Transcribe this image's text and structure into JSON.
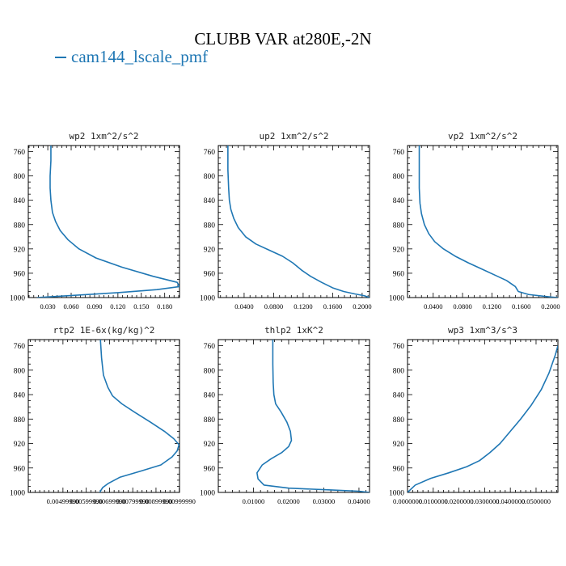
{
  "title": "CLUBB VAR at280E,-2N",
  "legend": {
    "label": "cam144_lscale_pmf",
    "color": "#1f77b4"
  },
  "chart_data": [
    {
      "type": "line",
      "title": "wp2  1xm^2/s^2",
      "ylim": [
        1000,
        750
      ],
      "yticks": [
        760,
        800,
        840,
        880,
        920,
        960,
        1000
      ],
      "xlim": [
        0.005,
        0.199
      ],
      "xticks": [
        0.03,
        0.06,
        0.09,
        0.12,
        0.15,
        0.18
      ],
      "xticklabels": [
        "0.030",
        "0.060",
        "0.090",
        "0.120",
        "0.150",
        "0.180"
      ],
      "series": [
        {
          "color": "#1f77b4",
          "x": [
            0.034,
            0.034,
            0.033,
            0.033,
            0.034,
            0.036,
            0.04,
            0.046,
            0.056,
            0.07,
            0.092,
            0.125,
            0.165,
            0.196,
            0.199,
            0.17,
            0.12,
            0.016
          ],
          "y": [
            750,
            775,
            800,
            820,
            840,
            860,
            875,
            890,
            905,
            920,
            935,
            950,
            965,
            975,
            982,
            987,
            992,
            1000
          ]
        }
      ]
    },
    {
      "type": "line",
      "title": "up2  1xm^2/s^2",
      "ylim": [
        1000,
        750
      ],
      "yticks": [
        760,
        800,
        840,
        880,
        920,
        960,
        1000
      ],
      "xlim": [
        0.005,
        0.21
      ],
      "xticks": [
        0.04,
        0.08,
        0.12,
        0.16,
        0.2
      ],
      "xticklabels": [
        "0.0400",
        "0.0800",
        "0.1200",
        "0.1600",
        "0.2000"
      ],
      "series": [
        {
          "color": "#1f77b4",
          "x": [
            0.018,
            0.018,
            0.019,
            0.02,
            0.022,
            0.026,
            0.032,
            0.042,
            0.056,
            0.074,
            0.092,
            0.106,
            0.118,
            0.13,
            0.145,
            0.16,
            0.175,
            0.19,
            0.203,
            0.21
          ],
          "y": [
            750,
            790,
            820,
            840,
            855,
            870,
            885,
            900,
            912,
            922,
            932,
            943,
            955,
            965,
            975,
            984,
            990,
            994,
            997,
            1000
          ]
        }
      ]
    },
    {
      "type": "line",
      "title": "vp2  1xm^2/s^2",
      "ylim": [
        1000,
        750
      ],
      "yticks": [
        760,
        800,
        840,
        880,
        920,
        960,
        1000
      ],
      "xlim": [
        0.005,
        0.21
      ],
      "xticks": [
        0.04,
        0.08,
        0.12,
        0.16,
        0.2
      ],
      "xticklabels": [
        "0.0400",
        "0.0800",
        "0.1200",
        "0.1600",
        "0.2000"
      ],
      "series": [
        {
          "color": "#1f77b4",
          "x": [
            0.021,
            0.021,
            0.021,
            0.022,
            0.024,
            0.028,
            0.034,
            0.042,
            0.054,
            0.07,
            0.088,
            0.106,
            0.124,
            0.14,
            0.152,
            0.156,
            0.17,
            0.2,
            0.21
          ],
          "y": [
            750,
            790,
            820,
            845,
            862,
            880,
            895,
            908,
            920,
            932,
            943,
            953,
            963,
            972,
            982,
            990,
            995,
            999,
            1000
          ]
        }
      ]
    },
    {
      "type": "line",
      "title": "rtp2  1E-6x(kg/kg)^2",
      "ylim": [
        1000,
        750
      ],
      "yticks": [
        760,
        800,
        840,
        880,
        920,
        960,
        1000
      ],
      "xlim": [
        0.0035,
        0.01
      ],
      "xticks": [
        0.00499,
        0.00599,
        0.00699,
        0.00799,
        0.00899,
        0.00999
      ],
      "xticklabels": [
        "0.00499990",
        "0.00599990",
        "0.00699990",
        "0.00799990",
        "0.00899990",
        "0.00999990"
      ],
      "series": [
        {
          "color": "#1f77b4",
          "x": [
            0.0066,
            0.00665,
            0.00673,
            0.00692,
            0.00712,
            0.00752,
            0.00812,
            0.00875,
            0.00935,
            0.00975,
            0.00998,
            0.0099,
            0.00968,
            0.0092,
            0.00835,
            0.00745,
            0.00695,
            0.0067,
            0.0066,
            0.00658
          ],
          "y": [
            750,
            780,
            808,
            828,
            842,
            855,
            870,
            885,
            900,
            912,
            922,
            932,
            942,
            955,
            965,
            975,
            985,
            992,
            998,
            1000
          ]
        }
      ]
    },
    {
      "type": "line",
      "title": "thlp2  1xK^2",
      "ylim": [
        1000,
        750
      ],
      "yticks": [
        760,
        800,
        840,
        880,
        920,
        960,
        1000
      ],
      "xlim": [
        0.0,
        0.043
      ],
      "xticks": [
        0.01,
        0.02,
        0.03,
        0.04
      ],
      "xticklabels": [
        "0.01000",
        "0.02000",
        "0.03000",
        "0.04000"
      ],
      "series": [
        {
          "color": "#1f77b4",
          "x": [
            0.0155,
            0.0155,
            0.0156,
            0.0158,
            0.0163,
            0.0178,
            0.0195,
            0.0205,
            0.0208,
            0.02,
            0.018,
            0.015,
            0.0125,
            0.011,
            0.0113,
            0.013,
            0.02,
            0.032,
            0.04,
            0.043
          ],
          "y": [
            750,
            790,
            820,
            840,
            855,
            868,
            885,
            900,
            915,
            925,
            935,
            945,
            955,
            968,
            978,
            988,
            993,
            996,
            998,
            1000
          ]
        }
      ]
    },
    {
      "type": "line",
      "title": "wp3  1xm^3/s^3",
      "ylim": [
        1000,
        750
      ],
      "yticks": [
        760,
        800,
        840,
        880,
        920,
        960,
        1000
      ],
      "xlim": [
        0.0,
        0.0585
      ],
      "xticks": [
        0.0,
        0.01,
        0.02,
        0.03,
        0.04,
        0.05
      ],
      "xticklabels": [
        "0.0000000",
        "0.0100000",
        "0.0200000",
        "0.0300000",
        "0.0400000",
        "0.0500000"
      ],
      "series": [
        {
          "color": "#1f77b4",
          "x": [
            0.0,
            0.003,
            0.009,
            0.016,
            0.023,
            0.028,
            0.032,
            0.036,
            0.04,
            0.044,
            0.048,
            0.052,
            0.055,
            0.0575,
            0.0585
          ],
          "y": [
            1000,
            988,
            977,
            968,
            958,
            948,
            935,
            920,
            900,
            880,
            858,
            832,
            805,
            775,
            760
          ]
        }
      ]
    }
  ]
}
